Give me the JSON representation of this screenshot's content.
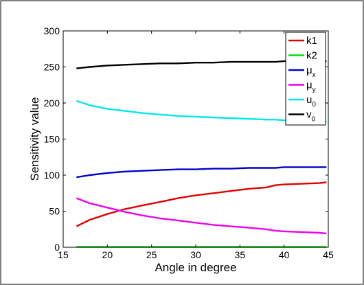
{
  "chart_data": {
    "type": "line",
    "title": "",
    "xlabel": "Angle in degree",
    "ylabel": "Sensitivity value",
    "xlim": [
      15,
      45
    ],
    "ylim": [
      0,
      300
    ],
    "xticks": [
      15,
      20,
      25,
      30,
      35,
      40,
      45
    ],
    "xtick_labels": [
      "15",
      "20",
      "25",
      "30",
      "35",
      "40",
      "45"
    ],
    "yticks": [
      0,
      50,
      100,
      150,
      200,
      250,
      300
    ],
    "ytick_labels": [
      "0",
      "50",
      "100",
      "150",
      "200",
      "250",
      "300"
    ],
    "grid": false,
    "legend_position": "top-right",
    "x": [
      16.5,
      18,
      20,
      22,
      24,
      26,
      28,
      30,
      32,
      34,
      36,
      38,
      39,
      40,
      42,
      44,
      44.8
    ],
    "series": [
      {
        "name": "k1",
        "label_main": "k1",
        "label_sub": "",
        "color": "#e00000",
        "values": [
          29,
          38,
          46,
          53,
          58,
          63,
          68,
          72,
          75,
          78,
          81,
          83,
          86,
          87,
          88,
          89,
          90
        ]
      },
      {
        "name": "k2",
        "label_main": "k2",
        "label_sub": "",
        "color": "#00e000",
        "values": [
          0.5,
          0.5,
          0.5,
          0.5,
          0.5,
          0.5,
          0.5,
          0.5,
          0.5,
          0.5,
          0.5,
          0.5,
          0.5,
          0.5,
          0.5,
          0.5,
          0.5
        ]
      },
      {
        "name": "μx",
        "label_main": "μ",
        "label_sub": "x",
        "color": "#0000cc",
        "values": [
          97,
          100,
          103,
          105,
          106,
          107,
          108,
          108,
          109,
          109,
          110,
          110,
          110,
          111,
          111,
          111,
          111
        ]
      },
      {
        "name": "μy",
        "label_main": "μ",
        "label_sub": "y",
        "color": "#ee00ee",
        "values": [
          68,
          61,
          55,
          49,
          44,
          40,
          37,
          34,
          31,
          29,
          27,
          25,
          23,
          22,
          21,
          20,
          19
        ]
      },
      {
        "name": "u0",
        "label_main": "u",
        "label_sub": "0",
        "color": "#00e8e8",
        "values": [
          203,
          197,
          192,
          189,
          186,
          184,
          182,
          181,
          180,
          179,
          178,
          177,
          177,
          176,
          175,
          175,
          174
        ]
      },
      {
        "name": "v0",
        "label_main": "v",
        "label_sub": "0",
        "color": "#000000",
        "values": [
          248,
          250,
          252,
          253,
          254,
          255,
          255,
          256,
          256,
          257,
          257,
          257,
          257,
          258,
          258,
          258,
          258
        ]
      }
    ]
  }
}
